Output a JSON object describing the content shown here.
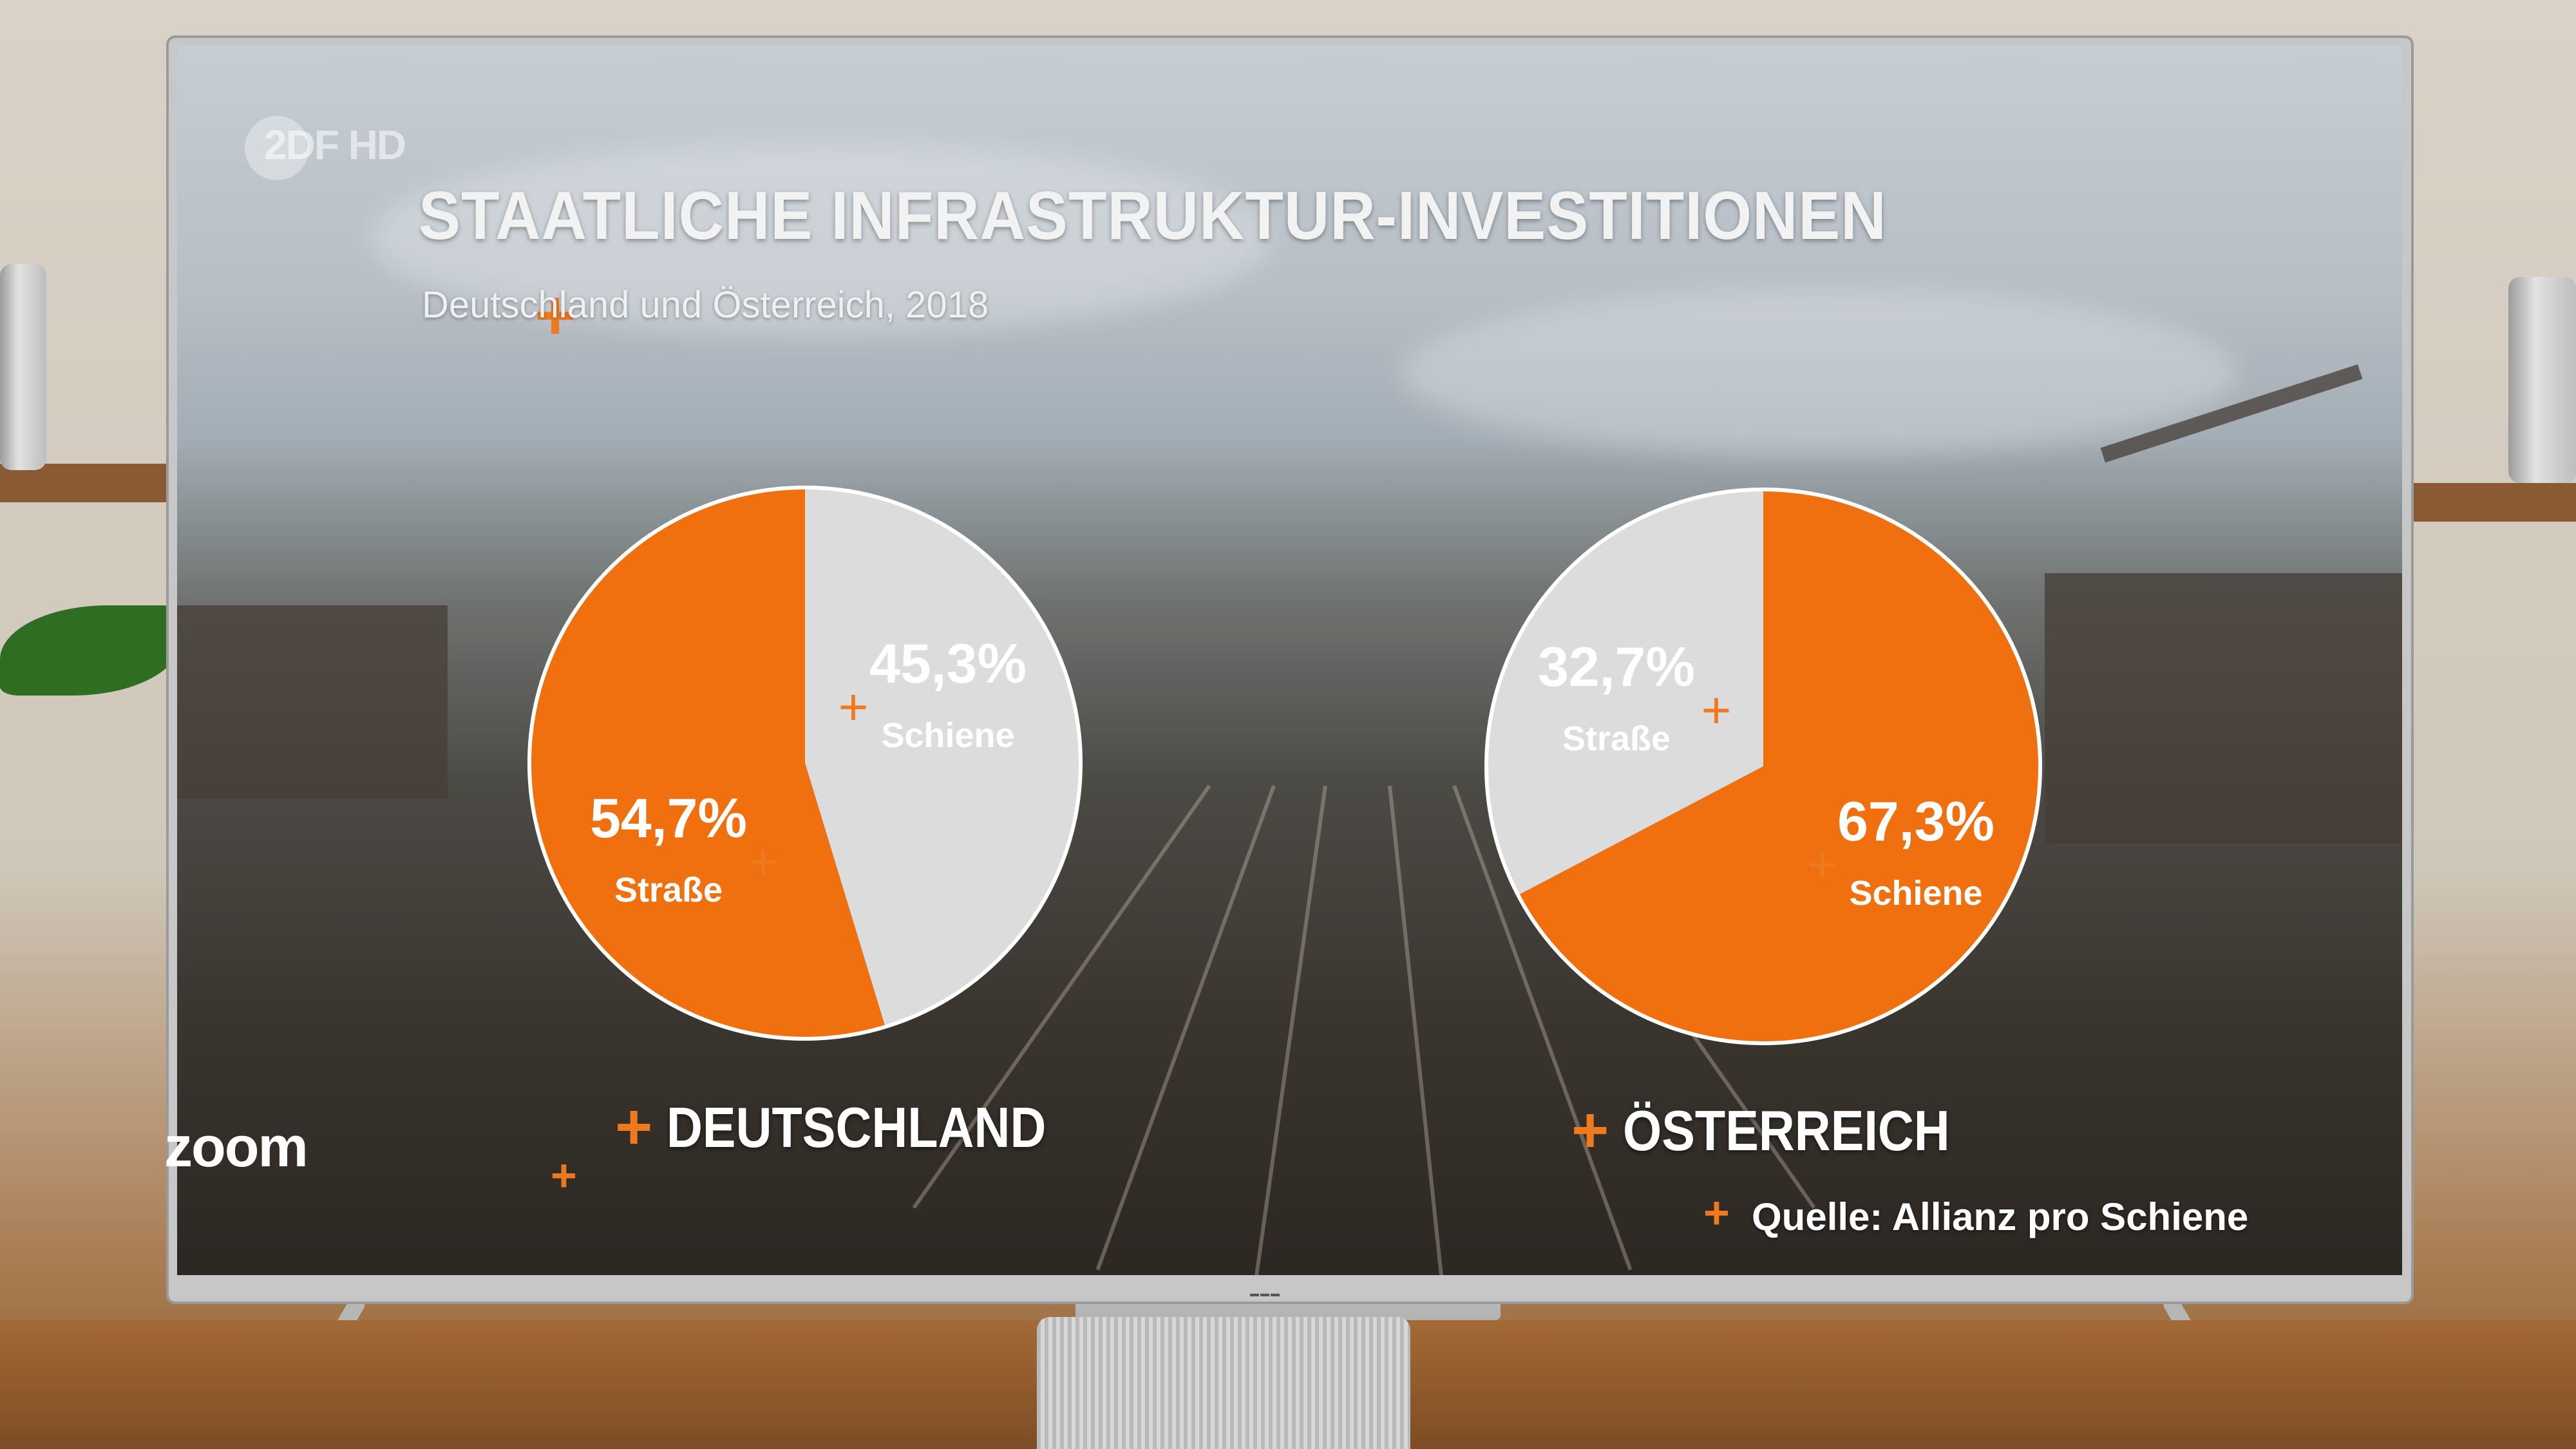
{
  "broadcast": {
    "channel_logo": "2DF HD",
    "show_logo": "zoom"
  },
  "chart_data": [
    {
      "type": "pie",
      "title": "STAATLICHE INFRASTRUKTUR-INVESTITIONEN",
      "subtitle": "Deutschland und Österreich, 2018",
      "name": "DEUTSCHLAND",
      "slices": [
        {
          "label": "Schiene",
          "value": 45.3,
          "display": "45,3%",
          "color": "#dcdcdc"
        },
        {
          "label": "Straße",
          "value": 54.7,
          "display": "54,7%",
          "color": "#f07010"
        }
      ]
    },
    {
      "type": "pie",
      "name": "ÖSTERREICH",
      "slices": [
        {
          "label": "Schiene",
          "value": 67.3,
          "display": "67,3%",
          "color": "#f07010"
        },
        {
          "label": "Straße",
          "value": 32.7,
          "display": "32,7%",
          "color": "#dcdcdc"
        }
      ]
    }
  ],
  "source": "Quelle: Allianz pro Schiene",
  "colors": {
    "accent": "#ee7a20",
    "road_de": "#f07010",
    "rail_de": "#dcdcdc"
  }
}
